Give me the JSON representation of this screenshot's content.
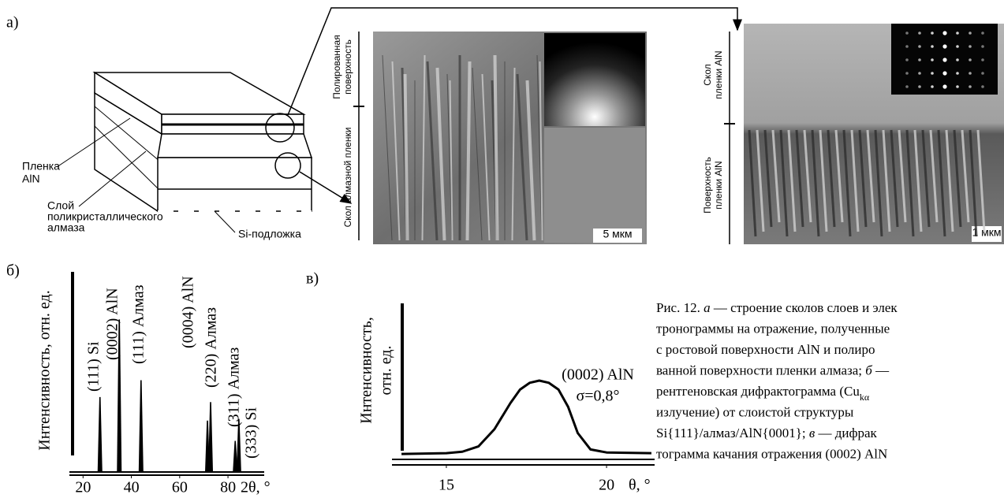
{
  "panel_a": {
    "label": "а)",
    "film_label": [
      "Пленка",
      "AlN"
    ],
    "layer_label": [
      "Слой",
      "поликристаллического",
      "алмаза"
    ],
    "substrate_label": "Si-подложка",
    "middle_image": {
      "top_label": [
        "Полированная",
        "поверхность"
      ],
      "bottom_label": "Скол алмазной пленки",
      "scale": "5 мкм"
    },
    "right_image": {
      "top_label": [
        "Скол",
        "пленки AlN"
      ],
      "bottom_label": [
        "Поверхность",
        "пленки AlN"
      ],
      "scale": "1 мкм"
    }
  },
  "chart_data": [
    {
      "type": "spectrum",
      "panel_label": "б)",
      "y_label": "Интенсивность, отн. ед.",
      "x_label": "2θ, °",
      "x": [
        27,
        35,
        44,
        71.5,
        72.8,
        83,
        84.5
      ],
      "values": [
        44,
        90,
        54,
        30,
        41,
        18,
        31
      ],
      "peak_labels": [
        "(111) Si",
        "(0002) AlN",
        "(111) Алмаз",
        "(0004) AlN",
        "(220) Алмаз",
        "(311) Алмаз",
        "(333) Si"
      ],
      "xlim": [
        15,
        95
      ],
      "xticks": [
        20,
        40,
        60,
        80
      ],
      "ylim": [
        0,
        100
      ],
      "color": "#000000"
    },
    {
      "type": "line",
      "panel_label": "в)",
      "y_label": [
        "Интенсивность,",
        "отн. ед."
      ],
      "x_label": "θ, °",
      "annotation": [
        "(0002) AlN",
        "σ=0,8°"
      ],
      "x": [
        13.6,
        15,
        15.5,
        16,
        16.5,
        17,
        17.3,
        17.6,
        17.9,
        18.2,
        18.5,
        18.8,
        19.1,
        19.5,
        20,
        21.4
      ],
      "values": [
        2,
        3,
        5,
        12,
        35,
        70,
        88,
        97,
        100,
        97,
        88,
        65,
        30,
        8,
        4,
        3
      ],
      "xlim": [
        13.5,
        21.5
      ],
      "xticks": [
        15,
        20
      ],
      "ylim": [
        0,
        100
      ],
      "color": "#000000"
    }
  ],
  "caption": {
    "lines": [
      [
        "Рис. 12. ",
        {
          "i": "а"
        },
        " — строение сколов слоев и элек"
      ],
      [
        "тронограммы на отражение, полученные"
      ],
      [
        "с ростовой поверхности AlN и полиро"
      ],
      [
        "ванной поверхности пленки алмаза; ",
        {
          "i": "б"
        },
        " —"
      ],
      [
        "рентгеновская дифрактограмма (Cu",
        {
          "sub": "kα"
        }
      ],
      [
        "излучение) от слоистой структуры"
      ],
      [
        "Si{111}/алмаз/AlN{0001}; ",
        {
          "i": "в"
        },
        " — дифрак"
      ],
      [
        "тограмма качания отражения (0002) AlN"
      ]
    ]
  }
}
